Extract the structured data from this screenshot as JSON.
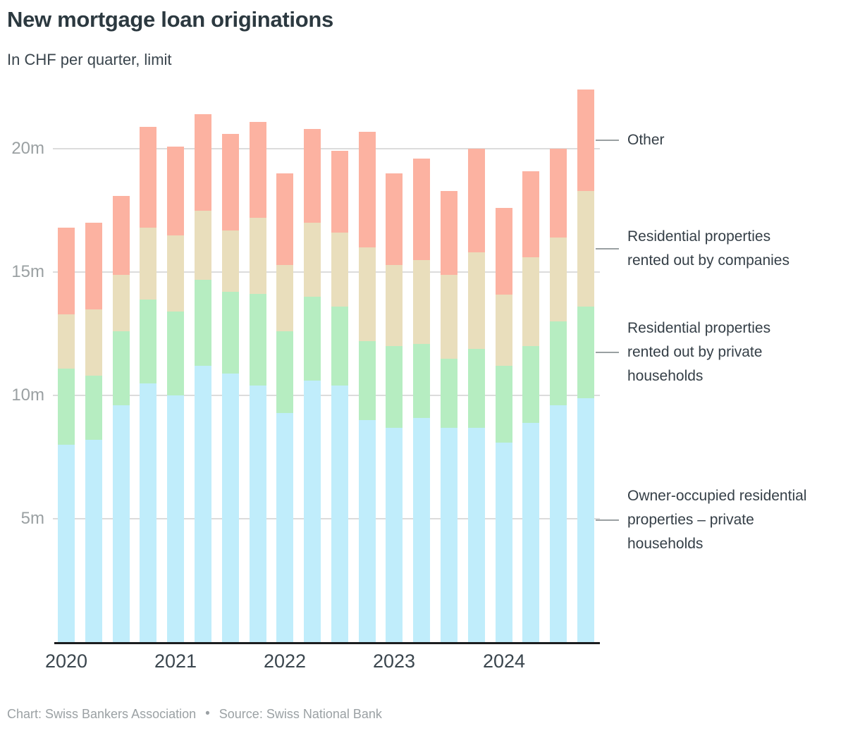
{
  "title": "New mortgage loan originations",
  "subtitle": "In CHF per quarter, limit",
  "footer": {
    "credit": "Chart: Swiss Bankers Association",
    "separator": "•",
    "source": "Source: Swiss National Bank"
  },
  "legend": [
    {
      "key": "other",
      "lines": [
        "Other"
      ]
    },
    {
      "key": "rented-companies",
      "lines": [
        "Residential properties",
        "rented out by companies"
      ]
    },
    {
      "key": "rented-private",
      "lines": [
        "Residential properties",
        "rented out by private",
        "households"
      ]
    },
    {
      "key": "owner-occupied",
      "lines": [
        "Owner-occupied residential",
        "properties – private",
        "households"
      ]
    }
  ],
  "colors": {
    "gridline": "#dcdcdc",
    "axis": "#1b1d1f",
    "tick_text": "#9aa0a2",
    "x_label_text": "#3b464e",
    "title_text": "#2c3940",
    "legend_text": "#353f47",
    "footer_text": "#9ba1a4",
    "connector": "#9aa0a2"
  },
  "chart_data": {
    "type": "bar",
    "stacked": true,
    "title": "New mortgage loan originations",
    "subtitle": "In CHF per quarter, limit",
    "values_unit": "millions of CHF (m)",
    "x": [
      "2020 Q1",
      "2020 Q2",
      "2020 Q3",
      "2020 Q4",
      "2021 Q1",
      "2021 Q2",
      "2021 Q3",
      "2021 Q4",
      "2022 Q1",
      "2022 Q2",
      "2022 Q3",
      "2022 Q4",
      "2023 Q1",
      "2023 Q2",
      "2023 Q3",
      "2023 Q4",
      "2024 Q1",
      "2024 Q2",
      "2024 Q3",
      "2024 Q4"
    ],
    "x_axis_labels": [
      "2020",
      "2021",
      "2022",
      "2023",
      "2024"
    ],
    "yticks": [
      {
        "value": 5,
        "label": "5m"
      },
      {
        "value": 10,
        "label": "10m"
      },
      {
        "value": 15,
        "label": "15m"
      },
      {
        "value": 20,
        "label": "20m"
      }
    ],
    "ylim": [
      0,
      23
    ],
    "grid": true,
    "legend_position": "right",
    "series": [
      {
        "key": "owner-occupied",
        "name": "Owner-occupied residential properties – private households",
        "color": "#c0edfb",
        "values": [
          8.0,
          8.2,
          9.6,
          10.5,
          10.0,
          11.2,
          10.9,
          10.4,
          9.3,
          10.6,
          10.4,
          9.0,
          8.7,
          9.1,
          8.7,
          8.7,
          8.1,
          8.9,
          9.6,
          9.9
        ]
      },
      {
        "key": "rented-private",
        "name": "Residential properties rented out by private households",
        "color": "#b6edc1",
        "values": [
          3.1,
          2.6,
          3.0,
          3.4,
          3.4,
          3.5,
          3.3,
          3.7,
          3.3,
          3.4,
          3.2,
          3.2,
          3.3,
          3.0,
          2.8,
          3.2,
          3.1,
          3.1,
          3.4,
          3.7
        ]
      },
      {
        "key": "rented-companies",
        "name": "Residential properties rented out by companies",
        "color": "#e9debc",
        "values": [
          2.2,
          2.7,
          2.3,
          2.9,
          3.1,
          2.8,
          2.5,
          3.1,
          2.7,
          3.0,
          3.0,
          3.8,
          3.3,
          3.4,
          3.4,
          3.9,
          2.9,
          3.6,
          3.4,
          4.7
        ]
      },
      {
        "key": "other",
        "name": "Other",
        "color": "#fcb2a1",
        "values": [
          3.5,
          3.5,
          3.2,
          4.1,
          3.6,
          3.9,
          3.9,
          3.9,
          3.7,
          3.8,
          3.3,
          4.7,
          3.7,
          4.1,
          3.4,
          4.2,
          3.5,
          3.5,
          3.6,
          4.1
        ]
      }
    ]
  }
}
